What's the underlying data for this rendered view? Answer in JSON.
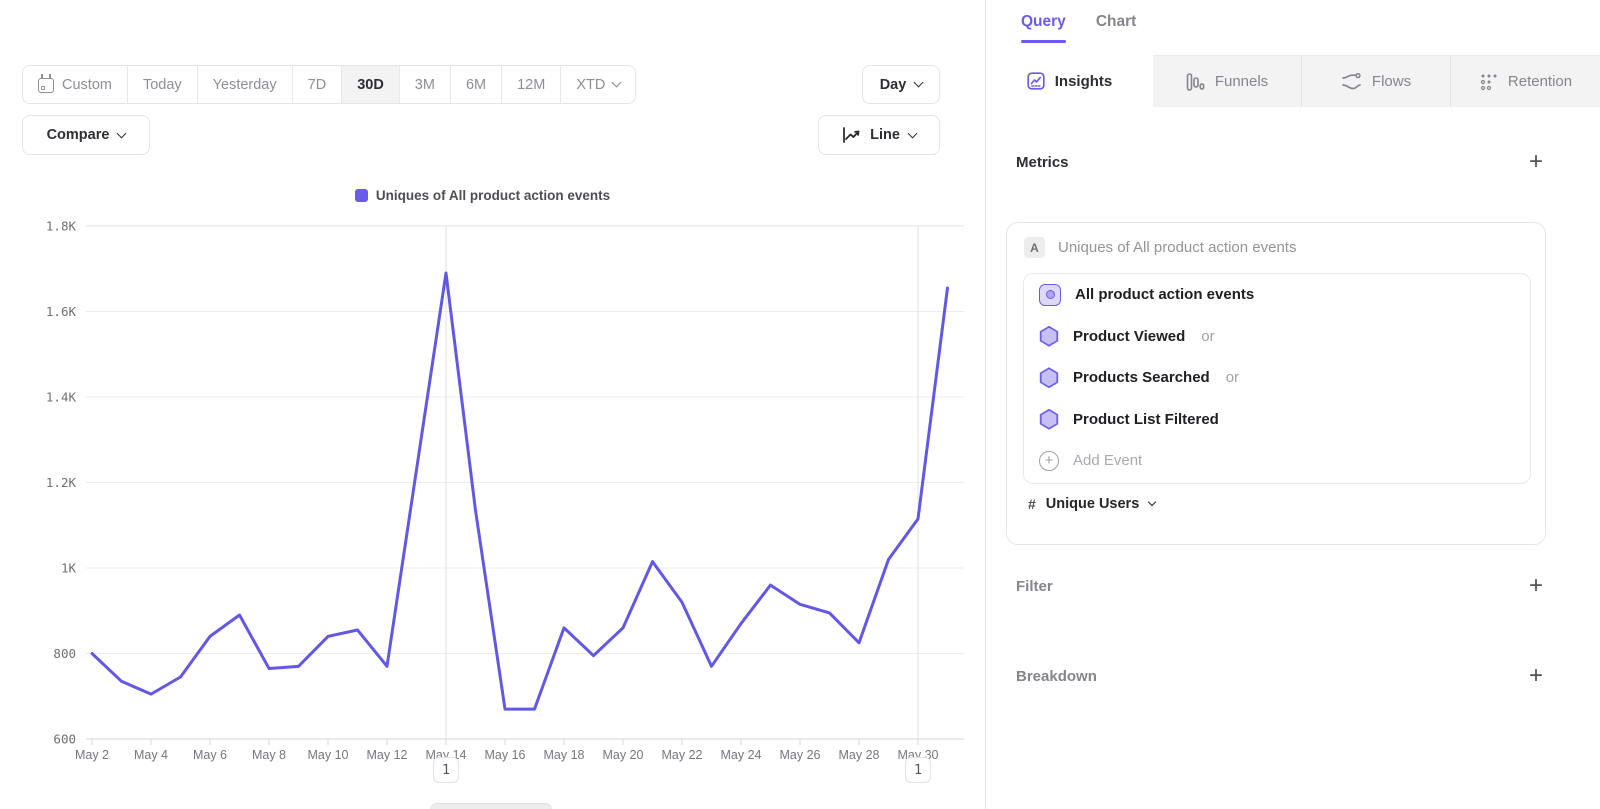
{
  "colors": {
    "accent": "#6a5ce8",
    "line": "#6258e3",
    "grid": "#ececed",
    "axis": "#d7d7d9",
    "axis_label": "#6f6f74",
    "x_label": "#76767c"
  },
  "toolbar": {
    "date_ranges": [
      "Custom",
      "Today",
      "Yesterday",
      "7D",
      "30D",
      "3M",
      "6M",
      "12M",
      "XTD"
    ],
    "selected_range": "30D",
    "granularity_label": "Day",
    "compare_label": "Compare",
    "chart_type_label": "Line"
  },
  "chart_data": {
    "type": "line",
    "title": "",
    "x": [
      "May 2",
      "May 3",
      "May 4",
      "May 5",
      "May 6",
      "May 7",
      "May 8",
      "May 9",
      "May 10",
      "May 11",
      "May 12",
      "May 13",
      "May 14",
      "May 15",
      "May 16",
      "May 17",
      "May 18",
      "May 19",
      "May 20",
      "May 21",
      "May 22",
      "May 23",
      "May 24",
      "May 25",
      "May 26",
      "May 27",
      "May 28",
      "May 29",
      "May 30",
      "May 31"
    ],
    "series": [
      {
        "name": "Uniques of All product action events",
        "color": "#6258e3",
        "values": [
          800,
          735,
          705,
          745,
          840,
          890,
          765,
          770,
          840,
          855,
          770,
          1230,
          1690,
          1135,
          670,
          670,
          860,
          795,
          860,
          1015,
          920,
          770,
          870,
          960,
          915,
          895,
          825,
          1020,
          1115,
          1655
        ]
      }
    ],
    "ylim": [
      600,
      1800
    ],
    "yticks": [
      {
        "value": 600,
        "label": "600"
      },
      {
        "value": 800,
        "label": "800"
      },
      {
        "value": 1000,
        "label": "1K"
      },
      {
        "value": 1200,
        "label": "1.2K"
      },
      {
        "value": 1400,
        "label": "1.4K"
      },
      {
        "value": 1600,
        "label": "1.6K"
      },
      {
        "value": 1800,
        "label": "1.8K"
      }
    ],
    "xticks": [
      "May 2",
      "May 4",
      "May 6",
      "May 8",
      "May 10",
      "May 12",
      "May 14",
      "May 16",
      "May 18",
      "May 20",
      "May 22",
      "May 24",
      "May 26",
      "May 28",
      "May 30"
    ],
    "annotations": [
      {
        "x": "May 14",
        "label": "1"
      },
      {
        "x": "May 30",
        "label": "1"
      }
    ],
    "grid": "horizontal",
    "legend_position": "top-center"
  },
  "panel": {
    "tabs": [
      {
        "label": "Query",
        "active": true
      },
      {
        "label": "Chart",
        "active": false
      }
    ],
    "report_tabs": [
      {
        "label": "Insights",
        "icon": "insights-icon",
        "active": true
      },
      {
        "label": "Funnels",
        "icon": "funnels-icon",
        "active": false
      },
      {
        "label": "Flows",
        "icon": "flows-icon",
        "active": false
      },
      {
        "label": "Retention",
        "icon": "retention-icon",
        "active": false
      }
    ],
    "metrics": {
      "title": "Metrics",
      "add_label": "+",
      "group_badge": "A",
      "group_label": "Uniques of All product action events",
      "events": [
        {
          "label": "All product action events",
          "suffix": "",
          "icon": "event-group-icon"
        },
        {
          "label": "Product Viewed",
          "suffix": "or",
          "icon": "hexagon-icon"
        },
        {
          "label": "Products Searched",
          "suffix": "or",
          "icon": "hexagon-icon"
        },
        {
          "label": "Product List Filtered",
          "suffix": "",
          "icon": "hexagon-icon"
        }
      ],
      "add_event_label": "Add Event",
      "aggregation": {
        "symbol": "#",
        "label": "Unique Users"
      }
    },
    "filter": {
      "title": "Filter",
      "add_label": "+"
    },
    "breakdown": {
      "title": "Breakdown",
      "add_label": "+"
    }
  }
}
